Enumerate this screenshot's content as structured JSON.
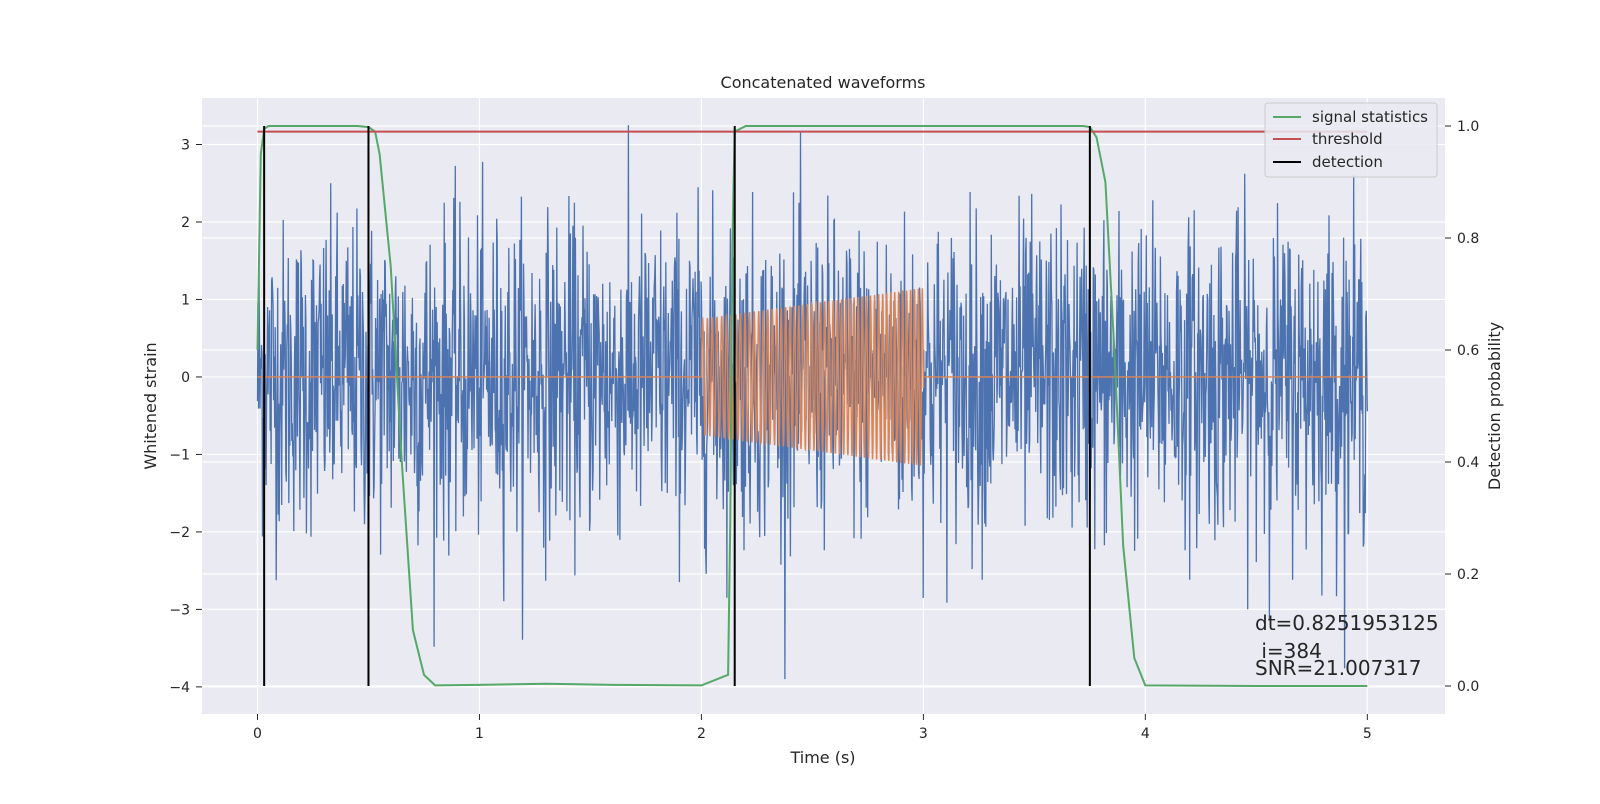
{
  "chart_data": {
    "type": "line",
    "title": "Concatenated waveforms",
    "xlabel": "Time (s)",
    "ylabel": "Whitened strain",
    "y2label": "Detection probability",
    "xlim": [
      -0.25,
      5.35
    ],
    "ylim": [
      -4.35,
      3.6
    ],
    "y2lim": [
      -0.05,
      1.05
    ],
    "xticks": [
      0,
      1,
      2,
      3,
      4,
      5
    ],
    "xtick_labels": [
      "0",
      "1",
      "2",
      "3",
      "4",
      "5"
    ],
    "yticks": [
      -4,
      -3,
      -2,
      -1,
      0,
      1,
      2,
      3
    ],
    "ytick_labels": [
      "−4",
      "−3",
      "−2",
      "−1",
      "0",
      "1",
      "2",
      "3"
    ],
    "y2ticks": [
      0.0,
      0.2,
      0.4,
      0.6,
      0.8,
      1.0
    ],
    "y2tick_labels": [
      "0.0",
      "0.2",
      "0.4",
      "0.6",
      "0.8",
      "1.0"
    ],
    "grid": true,
    "legend_position": "top-right",
    "series": [
      {
        "name": "",
        "color": "#4c72b0",
        "axis": "left",
        "description_kind": "noise",
        "x_range": [
          0,
          5
        ],
        "y_envelope": [
          -3.9,
          3.25
        ]
      },
      {
        "name": "",
        "color": "#dd8452",
        "axis": "left",
        "chirp": {
          "t_start": 2.0,
          "t_end": 3.0,
          "amp_start": 0.75,
          "amp_end": 1.15,
          "cycles": 46
        },
        "baseline": 0.0,
        "x_range": [
          0,
          5
        ]
      },
      {
        "name": "signal statistics",
        "color": "#55a868",
        "axis": "right",
        "x": [
          0.0,
          0.015,
          0.03,
          0.05,
          0.1,
          0.45,
          0.5,
          0.53,
          0.55,
          0.6,
          0.65,
          0.7,
          0.75,
          0.8,
          1.0,
          1.3,
          1.6,
          2.0,
          2.12,
          2.13,
          2.14,
          2.15,
          2.2,
          2.5,
          3.0,
          3.5,
          3.72,
          3.75,
          3.78,
          3.82,
          3.86,
          3.9,
          3.95,
          4.0,
          4.5,
          5.0
        ],
        "y": [
          0.6,
          0.95,
          0.995,
          1.0,
          1.0,
          1.0,
          0.998,
          0.99,
          0.95,
          0.75,
          0.4,
          0.1,
          0.02,
          0.001,
          0.002,
          0.004,
          0.002,
          0.001,
          0.02,
          0.3,
          0.8,
          0.99,
          1.0,
          1.0,
          1.0,
          1.0,
          1.0,
          0.998,
          0.98,
          0.9,
          0.6,
          0.25,
          0.05,
          0.001,
          0.0,
          0.0
        ]
      },
      {
        "name": "threshold",
        "color": "#c44e52",
        "axis": "right",
        "x": [
          0,
          5
        ],
        "y": [
          0.99,
          0.99
        ]
      },
      {
        "name": "detection",
        "color": "#000000",
        "axis": "right",
        "vlines_x": [
          0.03,
          0.5,
          2.15,
          3.75
        ],
        "ymin": 0.0,
        "ymax": 1.0
      }
    ],
    "annotations": [
      {
        "text": "dt=0.8251953125",
        "x": 4.5,
        "y": 0.1
      },
      {
        "text": " i=384",
        "x": 4.5,
        "y": 0.05
      },
      {
        "text": "SNR=21.007317",
        "x": 4.5,
        "y": 0.02
      }
    ]
  }
}
